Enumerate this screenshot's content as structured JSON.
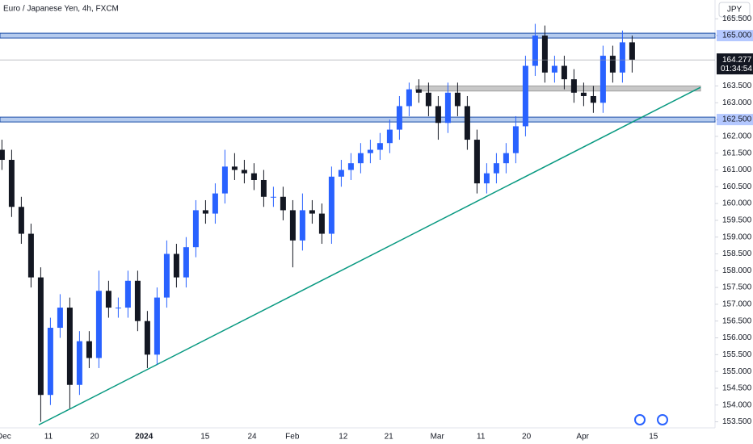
{
  "chart_data": {
    "type": "candlestick",
    "title": "Euro / Japanese Yen, 4h, FXCM",
    "currency": "JPY",
    "countdown": "01:34:54",
    "x": [
      0,
      1,
      2,
      3,
      4,
      5,
      6,
      7,
      8,
      9,
      10,
      11,
      12,
      13,
      14,
      15,
      16,
      17,
      18,
      19,
      20,
      21,
      22,
      23,
      24,
      25,
      26,
      27,
      28,
      29,
      30,
      31,
      32,
      33,
      34,
      35,
      36,
      37,
      38,
      39,
      40,
      41,
      42,
      43,
      44,
      45,
      46,
      47,
      48,
      49,
      50,
      51,
      52,
      53,
      54,
      55,
      56,
      57,
      58,
      59,
      60,
      61,
      62,
      63,
      64,
      65
    ],
    "open": [
      161.6,
      161.3,
      159.9,
      159.1,
      157.8,
      154.3,
      156.3,
      156.9,
      154.6,
      155.9,
      155.4,
      157.4,
      156.9,
      156.9,
      157.7,
      156.5,
      155.5,
      157.2,
      158.5,
      157.8,
      158.7,
      159.8,
      159.7,
      160.3,
      161.1,
      161.0,
      160.9,
      160.7,
      160.2,
      160.2,
      159.8,
      158.9,
      159.8,
      159.7,
      159.1,
      160.8,
      161.0,
      161.2,
      161.5,
      161.6,
      161.8,
      162.2,
      162.9,
      163.4,
      163.3,
      162.9,
      162.4,
      163.3,
      162.9,
      161.9,
      160.6,
      160.9,
      161.2,
      161.5,
      162.3,
      164.1,
      165.0,
      163.9,
      164.1,
      163.7,
      163.3,
      163.2,
      163.0,
      164.4,
      163.9,
      164.8
    ],
    "high": [
      161.9,
      161.6,
      160.2,
      159.4,
      158.1,
      156.6,
      157.3,
      157.2,
      156.2,
      156.2,
      158.0,
      157.7,
      157.2,
      158.0,
      158.0,
      156.8,
      157.5,
      158.9,
      158.8,
      159.0,
      160.1,
      160.1,
      160.6,
      161.6,
      161.5,
      161.3,
      161.2,
      161.0,
      160.5,
      160.5,
      160.1,
      160.3,
      160.1,
      160.0,
      161.1,
      161.3,
      161.5,
      161.8,
      161.9,
      162.1,
      162.5,
      163.2,
      163.6,
      163.7,
      163.6,
      163.2,
      163.6,
      163.6,
      163.2,
      162.2,
      161.2,
      161.5,
      161.8,
      162.6,
      164.4,
      165.35,
      165.3,
      164.4,
      164.4,
      164.0,
      163.6,
      163.5,
      164.7,
      164.7,
      165.15,
      165.0
    ],
    "low": [
      161.0,
      159.6,
      158.8,
      157.5,
      153.5,
      154.0,
      156.0,
      153.9,
      154.3,
      155.1,
      155.1,
      156.6,
      156.6,
      156.6,
      156.2,
      155.1,
      155.2,
      156.9,
      157.5,
      157.5,
      158.4,
      159.4,
      159.4,
      160.0,
      160.7,
      160.6,
      160.4,
      159.9,
      159.9,
      159.5,
      158.1,
      158.6,
      159.4,
      158.8,
      158.8,
      160.5,
      160.7,
      160.9,
      161.2,
      161.3,
      161.5,
      161.9,
      162.6,
      163.0,
      162.6,
      161.9,
      162.1,
      162.6,
      161.6,
      160.3,
      160.3,
      160.6,
      160.9,
      161.2,
      162.0,
      163.8,
      163.6,
      163.6,
      163.4,
      163.0,
      162.9,
      162.7,
      162.7,
      163.6,
      163.6,
      163.9
    ],
    "close": [
      161.3,
      159.9,
      159.1,
      157.8,
      154.3,
      156.3,
      156.9,
      154.6,
      155.9,
      155.4,
      157.4,
      156.9,
      156.9,
      157.7,
      156.5,
      155.5,
      157.2,
      158.5,
      157.8,
      158.7,
      159.8,
      159.7,
      160.3,
      161.1,
      161.0,
      160.9,
      160.7,
      160.2,
      160.2,
      159.8,
      158.9,
      159.8,
      159.7,
      159.1,
      160.8,
      161.0,
      161.2,
      161.5,
      161.6,
      161.8,
      162.2,
      162.9,
      163.4,
      163.3,
      162.9,
      162.4,
      163.3,
      162.9,
      161.9,
      160.6,
      160.9,
      161.2,
      161.5,
      162.3,
      164.1,
      165.0,
      163.9,
      164.1,
      163.7,
      163.3,
      163.2,
      163.0,
      164.4,
      163.9,
      164.8,
      164.277
    ],
    "up_color": "#2962ff",
    "down_color": "#131722",
    "xlim": [
      -0.2,
      73.55
    ],
    "xticks": [
      {
        "value": 0.2,
        "label": "Dec"
      },
      {
        "value": 4.8,
        "label": "11"
      },
      {
        "value": 9.55,
        "label": "20"
      },
      {
        "value": 14.65,
        "label": "2024"
      },
      {
        "value": 20.95,
        "label": "15"
      },
      {
        "value": 25.8,
        "label": "24"
      },
      {
        "value": 29.95,
        "label": "Feb"
      },
      {
        "value": 35.2,
        "label": "12"
      },
      {
        "value": 39.9,
        "label": "21"
      },
      {
        "value": 44.9,
        "label": "Mar"
      },
      {
        "value": 49.4,
        "label": "11"
      },
      {
        "value": 54.1,
        "label": "20"
      },
      {
        "value": 59.9,
        "label": "Apr"
      },
      {
        "value": 67.2,
        "label": "15"
      }
    ],
    "ylim": [
      153.32,
      166.06
    ],
    "yticks": [
      {
        "value": 165.5,
        "label": "165.500"
      },
      {
        "value": 165,
        "label": "165.000"
      },
      {
        "value": 164.5,
        "label": "164.500"
      },
      {
        "value": 163.5,
        "label": "163.500"
      },
      {
        "value": 163,
        "label": "163.000"
      },
      {
        "value": 162.5,
        "label": "162.500"
      },
      {
        "value": 162,
        "label": "162.000"
      },
      {
        "value": 161.5,
        "label": "161.500"
      },
      {
        "value": 161,
        "label": "161.000"
      },
      {
        "value": 160.5,
        "label": "160.500"
      },
      {
        "value": 160,
        "label": "160.000"
      },
      {
        "value": 159.5,
        "label": "159.500"
      },
      {
        "value": 159,
        "label": "159.000"
      },
      {
        "value": 158.5,
        "label": "158.500"
      },
      {
        "value": 158,
        "label": "158.000"
      },
      {
        "value": 157.5,
        "label": "157.500"
      },
      {
        "value": 157,
        "label": "157.000"
      },
      {
        "value": 156.5,
        "label": "156.500"
      },
      {
        "value": 156,
        "label": "156.000"
      },
      {
        "value": 155.5,
        "label": "155.500"
      },
      {
        "value": 155,
        "label": "155.000"
      },
      {
        "value": 154.5,
        "label": "154.500"
      },
      {
        "value": 154,
        "label": "154.000"
      },
      {
        "value": 153.5,
        "label": "153.500"
      }
    ],
    "levels": [
      165,
      162.5
    ],
    "level_color": "#5b8bd9",
    "zone": {
      "x": [
        42.7,
        72.05
      ],
      "y": [
        163.35,
        163.5
      ],
      "color": "#c8c8c8"
    },
    "trendline": {
      "x": [
        3.8,
        72.05
      ],
      "y": [
        153.41,
        163.46
      ],
      "color": "#089981"
    }
  }
}
